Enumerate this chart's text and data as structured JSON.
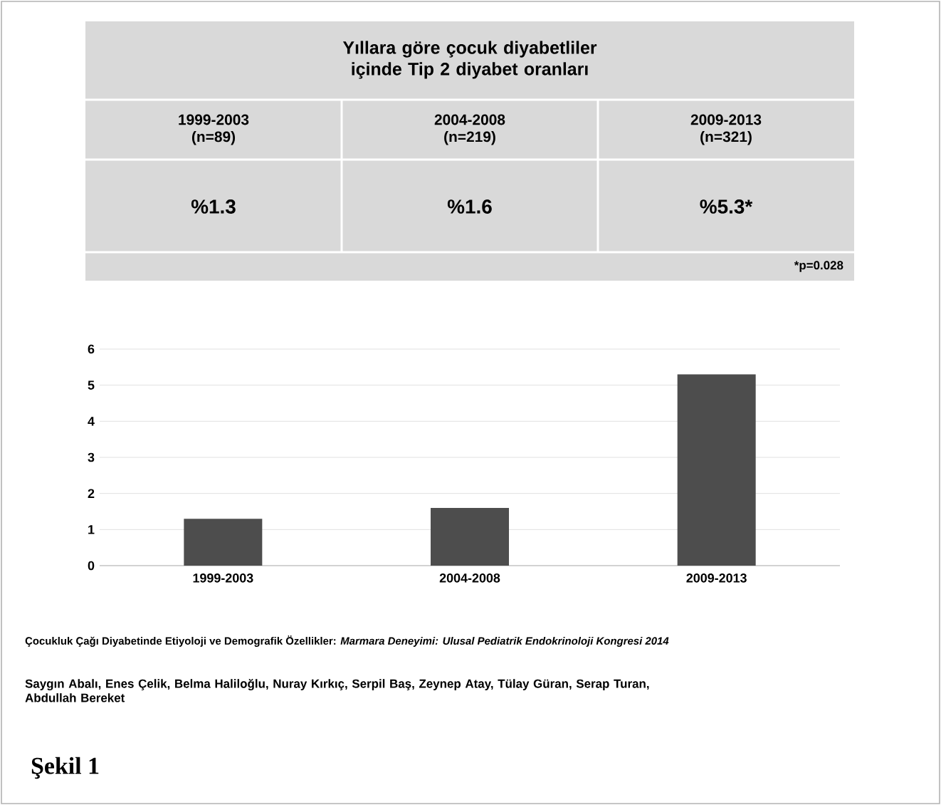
{
  "chart_data": {
    "type": "bar",
    "title": "Yıllara göre çocuk diyabetliler içinde Tip 2 diyabet oranları",
    "categories": [
      "1999-2003",
      "2004-2008",
      "2009-2013"
    ],
    "values": [
      1.3,
      1.6,
      5.3
    ],
    "value_labels": [
      "%1.3",
      "%1.6",
      "%5.3*"
    ],
    "color": "#4d4d4d",
    "ylim": [
      0,
      6
    ],
    "yticks": [
      0,
      1,
      2,
      3,
      4,
      5,
      6
    ],
    "grid": "y",
    "annotations": [
      "(n=89)",
      "(n=219)",
      "(n=321)",
      "*p=0.028",
      "Çocukluk Çağı Diyabetinde Etiyoloji ve Demografik Özellikler:  *Marmara Deneyimi: Ulusal Pediatrik Endokrinoloji Kongresi 2014*",
      "Saygın Abalı, Enes Çelik, Belma Haliloğlu, Nuray Kırkıç, Serpil Baş, Zeynep Atay, Tülay Güran, Serap Turan, Abdullah Bereket",
      "Şekil 1"
    ]
  }
}
